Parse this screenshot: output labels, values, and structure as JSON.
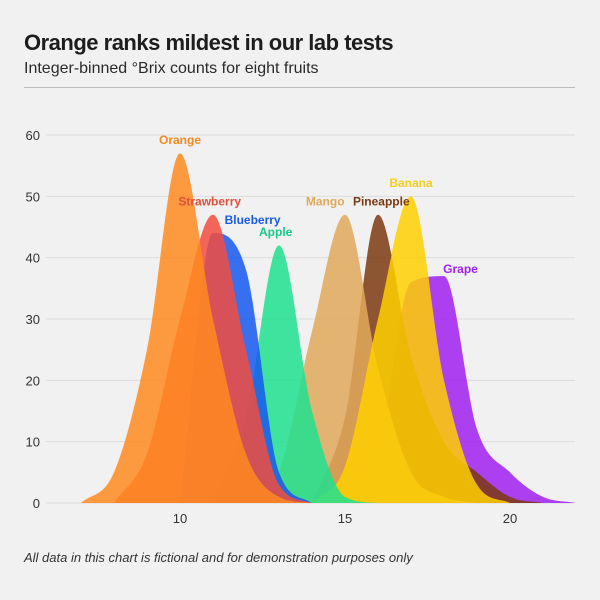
{
  "header": {
    "title": "Orange ranks mildest in our lab tests",
    "subtitle": "Integer-binned °Brix counts for eight fruits"
  },
  "footnote": "All data in this chart is fictional and for demonstration purposes only",
  "chart_data": {
    "type": "area",
    "title": "Orange ranks mildest in our lab tests",
    "subtitle": "Integer-binned °Brix counts for eight fruits",
    "xlabel": "",
    "ylabel": "",
    "xlim": [
      6,
      22
    ],
    "ylim": [
      0,
      60
    ],
    "x_ticks": [
      10,
      15,
      20
    ],
    "y_ticks": [
      0,
      10,
      20,
      30,
      40,
      50,
      60
    ],
    "grid": true,
    "legend": "direct-labels",
    "series": [
      {
        "name": "Grape",
        "color": "#a020f0",
        "x": [
          15,
          16,
          17,
          18,
          19,
          20,
          21,
          22
        ],
        "values": [
          0,
          8,
          36,
          37,
          12,
          5,
          1,
          0
        ]
      },
      {
        "name": "Pineapple",
        "color": "#7b3a10",
        "x": [
          14,
          15,
          16,
          17,
          18,
          19,
          20,
          21
        ],
        "values": [
          0,
          14,
          47,
          24,
          10,
          5,
          1,
          0
        ]
      },
      {
        "name": "Mango",
        "color": "#e0a95a",
        "x": [
          12,
          13,
          14,
          15,
          16,
          17,
          18,
          19
        ],
        "values": [
          0,
          5,
          28,
          47,
          22,
          5,
          1,
          0
        ]
      },
      {
        "name": "Banana",
        "color": "#ffd000",
        "x": [
          14,
          15,
          16,
          17,
          18,
          19,
          20
        ],
        "values": [
          0,
          6,
          30,
          50,
          20,
          3,
          0
        ]
      },
      {
        "name": "Apple",
        "color": "#1ee08f",
        "x": [
          11,
          12,
          13,
          14,
          15,
          16
        ],
        "values": [
          0,
          14,
          42,
          15,
          1,
          0
        ]
      },
      {
        "name": "Blueberry",
        "color": "#1558f0",
        "x": [
          10,
          11,
          12,
          13,
          14
        ],
        "values": [
          0,
          44,
          38,
          5,
          0
        ]
      },
      {
        "name": "Strawberry",
        "color": "#f24c3d",
        "x": [
          8,
          9,
          10,
          11,
          12,
          13,
          14
        ],
        "values": [
          0,
          8,
          30,
          47,
          25,
          3,
          0
        ]
      },
      {
        "name": "Orange",
        "color": "#ff8a1f",
        "x": [
          7,
          8,
          9,
          10,
          11,
          12,
          13,
          14
        ],
        "values": [
          0,
          5,
          25,
          57,
          30,
          8,
          1,
          0
        ]
      }
    ],
    "labels": [
      {
        "name": "Orange",
        "color": "#f28a20",
        "x": 10,
        "y": 58.5
      },
      {
        "name": "Strawberry",
        "color": "#e0503a",
        "x": 10.9,
        "y": 48.5
      },
      {
        "name": "Blueberry",
        "color": "#1a5ae6",
        "x": 12.2,
        "y": 45.5
      },
      {
        "name": "Apple",
        "color": "#16c98a",
        "x": 12.9,
        "y": 43.5
      },
      {
        "name": "Mango",
        "color": "#e0a95a",
        "x": 14.4,
        "y": 48.5
      },
      {
        "name": "Pineapple",
        "color": "#7b3a10",
        "x": 16.1,
        "y": 48.5
      },
      {
        "name": "Banana",
        "color": "#f5cd1c",
        "x": 17,
        "y": 51.5
      },
      {
        "name": "Grape",
        "color": "#a020f0",
        "x": 18.5,
        "y": 37.5
      }
    ]
  }
}
